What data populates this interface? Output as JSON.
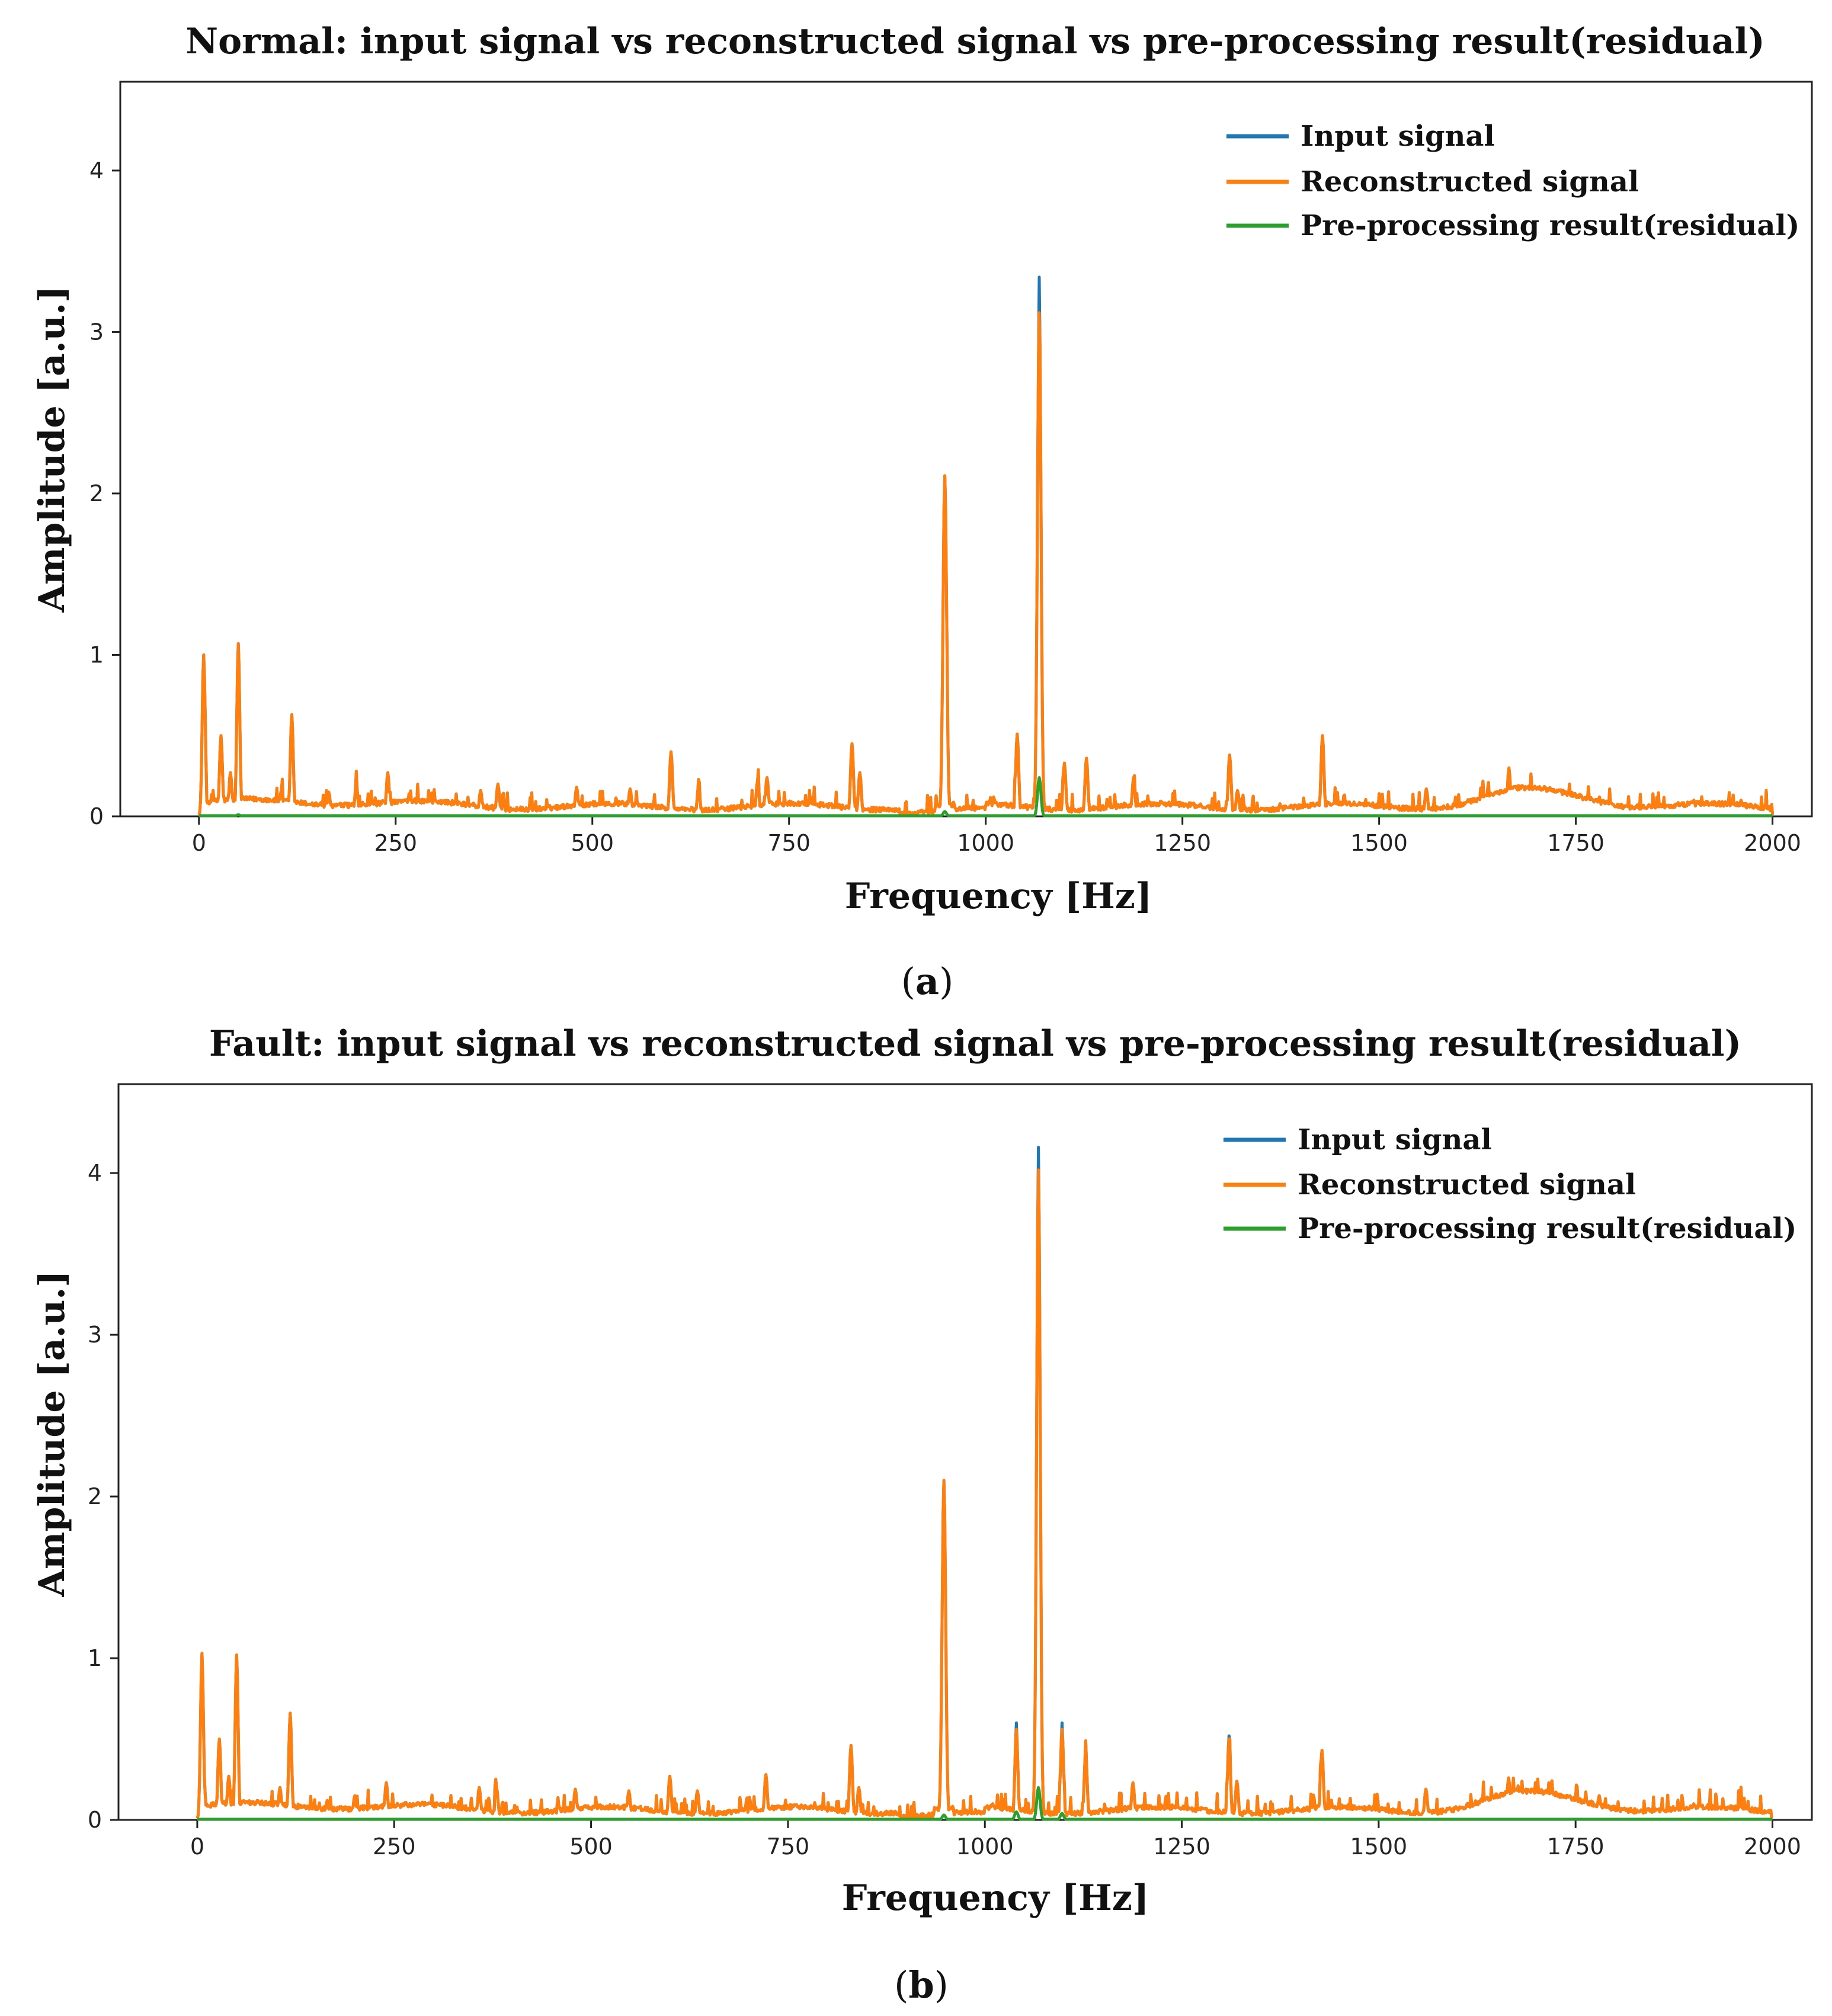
{
  "colors": {
    "input": "#1f77b4",
    "reconstructed": "#ff7f0e",
    "residual": "#2ca02c"
  },
  "chart_data": [
    {
      "type": "line",
      "panel_label": "a",
      "title": "Normal: input signal vs reconstructed signal vs pre-processing result(residual)",
      "xlabel": "Frequency [Hz]",
      "ylabel": "Amplitude [a.u.]",
      "xlim": [
        -100,
        2050
      ],
      "ylim": [
        0,
        4.55
      ],
      "xticks": [
        0,
        250,
        500,
        750,
        1000,
        1250,
        1500,
        1750,
        2000
      ],
      "yticks": [
        0,
        1,
        2,
        3,
        4
      ],
      "legend_position": "top-right",
      "baseline": 0.06,
      "peaks": [
        {
          "f": 6,
          "a": 1.0
        },
        {
          "f": 28,
          "a": 0.5
        },
        {
          "f": 40,
          "a": 0.27
        },
        {
          "f": 50,
          "a": 1.07
        },
        {
          "f": 105,
          "a": 0.17
        },
        {
          "f": 118,
          "a": 0.63
        },
        {
          "f": 165,
          "a": 0.15
        },
        {
          "f": 200,
          "a": 0.2
        },
        {
          "f": 240,
          "a": 0.27
        },
        {
          "f": 358,
          "a": 0.16
        },
        {
          "f": 380,
          "a": 0.2
        },
        {
          "f": 480,
          "a": 0.18
        },
        {
          "f": 548,
          "a": 0.17
        },
        {
          "f": 600,
          "a": 0.4
        },
        {
          "f": 635,
          "a": 0.18
        },
        {
          "f": 710,
          "a": 0.22
        },
        {
          "f": 722,
          "a": 0.24
        },
        {
          "f": 830,
          "a": 0.45
        },
        {
          "f": 840,
          "a": 0.27
        },
        {
          "f": 948,
          "a": 2.11
        },
        {
          "f": 1010,
          "a": 0.12
        },
        {
          "f": 1040,
          "a": 0.51
        },
        {
          "f": 1068,
          "a": 3.12
        },
        {
          "f": 1100,
          "a": 0.33
        },
        {
          "f": 1128,
          "a": 0.36
        },
        {
          "f": 1188,
          "a": 0.24
        },
        {
          "f": 1310,
          "a": 0.38
        },
        {
          "f": 1320,
          "a": 0.16
        },
        {
          "f": 1428,
          "a": 0.5
        },
        {
          "f": 1560,
          "a": 0.17
        },
        {
          "f": 1665,
          "a": 0.3
        },
        {
          "f": 1680,
          "a": 0.17
        },
        {
          "f": 1780,
          "a": 0.12
        },
        {
          "f": 1900,
          "a": 0.1
        },
        {
          "f": 1960,
          "a": 0.1
        }
      ],
      "input_extra_peaks": [
        {
          "f": 1068,
          "a": 3.34
        }
      ],
      "residual_peaks": [
        {
          "f": 948,
          "a": 0.03
        },
        {
          "f": 1068,
          "a": 0.24
        },
        {
          "f": 50,
          "a": 0.01
        }
      ],
      "series": [
        {
          "name": "Input signal"
        },
        {
          "name": "Reconstructed signal"
        },
        {
          "name": "Pre-processing result(residual)"
        }
      ]
    },
    {
      "type": "line",
      "panel_label": "b",
      "title": "Fault: input signal vs reconstructed signal vs pre-processing result(residual)",
      "xlabel": "Frequency [Hz]",
      "ylabel": "Amplitude [a.u.]",
      "xlim": [
        -100,
        2050
      ],
      "ylim": [
        0,
        4.55
      ],
      "xticks": [
        0,
        250,
        500,
        750,
        1000,
        1250,
        1500,
        1750,
        2000
      ],
      "yticks": [
        0,
        1,
        2,
        3,
        4
      ],
      "legend_position": "top-right",
      "baseline": 0.06,
      "peaks": [
        {
          "f": 6,
          "a": 1.03
        },
        {
          "f": 28,
          "a": 0.5
        },
        {
          "f": 40,
          "a": 0.27
        },
        {
          "f": 50,
          "a": 1.02
        },
        {
          "f": 105,
          "a": 0.2
        },
        {
          "f": 118,
          "a": 0.66
        },
        {
          "f": 165,
          "a": 0.12
        },
        {
          "f": 200,
          "a": 0.15
        },
        {
          "f": 240,
          "a": 0.23
        },
        {
          "f": 358,
          "a": 0.2
        },
        {
          "f": 380,
          "a": 0.2
        },
        {
          "f": 480,
          "a": 0.19
        },
        {
          "f": 548,
          "a": 0.18
        },
        {
          "f": 600,
          "a": 0.27
        },
        {
          "f": 635,
          "a": 0.18
        },
        {
          "f": 722,
          "a": 0.28
        },
        {
          "f": 830,
          "a": 0.46
        },
        {
          "f": 840,
          "a": 0.2
        },
        {
          "f": 948,
          "a": 2.1
        },
        {
          "f": 1010,
          "a": 0.1
        },
        {
          "f": 1040,
          "a": 0.56
        },
        {
          "f": 1068,
          "a": 4.02
        },
        {
          "f": 1098,
          "a": 0.56
        },
        {
          "f": 1128,
          "a": 0.42
        },
        {
          "f": 1188,
          "a": 0.23
        },
        {
          "f": 1310,
          "a": 0.5
        },
        {
          "f": 1320,
          "a": 0.24
        },
        {
          "f": 1428,
          "a": 0.43
        },
        {
          "f": 1560,
          "a": 0.19
        },
        {
          "f": 1665,
          "a": 0.26
        },
        {
          "f": 1780,
          "a": 0.15
        },
        {
          "f": 1900,
          "a": 0.1
        },
        {
          "f": 1960,
          "a": 0.13
        }
      ],
      "input_extra_peaks": [
        {
          "f": 1068,
          "a": 4.16
        },
        {
          "f": 1040,
          "a": 0.6
        },
        {
          "f": 1098,
          "a": 0.6
        },
        {
          "f": 1310,
          "a": 0.52
        }
      ],
      "residual_peaks": [
        {
          "f": 948,
          "a": 0.03
        },
        {
          "f": 1040,
          "a": 0.05
        },
        {
          "f": 1068,
          "a": 0.2
        },
        {
          "f": 1098,
          "a": 0.04
        }
      ],
      "series": [
        {
          "name": "Input signal"
        },
        {
          "name": "Reconstructed signal"
        },
        {
          "name": "Pre-processing result(residual)"
        }
      ]
    }
  ]
}
